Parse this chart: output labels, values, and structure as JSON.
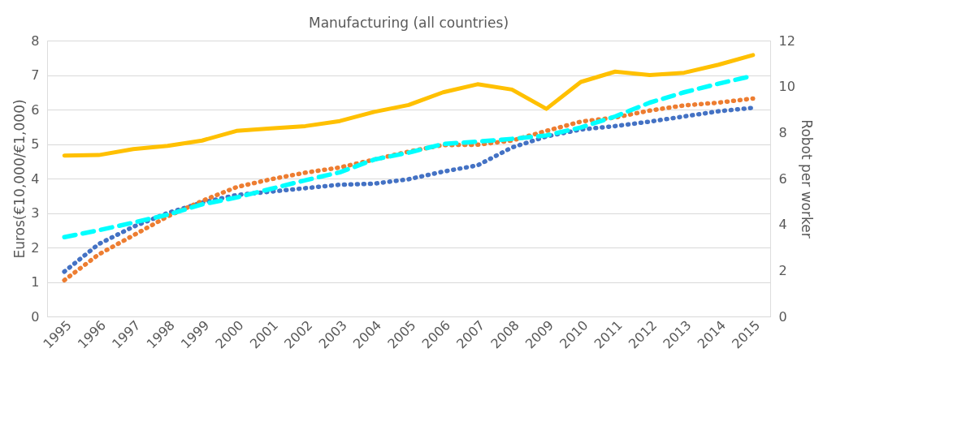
{
  "chart_data": {
    "type": "line",
    "title": "Manufacturing (all countries)",
    "ylabel": "Euros(€10,000/€1,000)",
    "y2label": "Robot per worker",
    "categories": [
      "1995",
      "1996",
      "1997",
      "1998",
      "1999",
      "2000",
      "2001",
      "2002",
      "2003",
      "2004",
      "2005",
      "2006",
      "2007",
      "2008",
      "2009",
      "2010",
      "2011",
      "2012",
      "2013",
      "2014",
      "2015"
    ],
    "ylim": [
      0,
      8
    ],
    "yticks": [
      0,
      1,
      2,
      3,
      4,
      5,
      6,
      7,
      8
    ],
    "y2lim": [
      0,
      12
    ],
    "y2ticks": [
      0,
      2,
      4,
      6,
      8,
      10,
      12
    ],
    "grid": "y",
    "marker": "none",
    "series": [
      {
        "color": "#ffc000",
        "axis": "y2",
        "line_style": "solid",
        "values": [
          7.0,
          7.02,
          7.28,
          7.42,
          7.65,
          8.07,
          8.18,
          8.28,
          8.5,
          8.9,
          9.2,
          9.75,
          10.1,
          9.87,
          9.03,
          10.2,
          10.65,
          10.5,
          10.6,
          10.95,
          11.37
        ]
      },
      {
        "color": "#4472c4",
        "line_style": "dotted",
        "values": [
          1.3,
          2.1,
          2.6,
          3.0,
          3.3,
          3.52,
          3.62,
          3.72,
          3.82,
          3.85,
          3.98,
          4.2,
          4.38,
          4.9,
          5.22,
          5.42,
          5.52,
          5.65,
          5.8,
          5.95,
          6.05
        ]
      },
      {
        "color": "#ed7d31",
        "line_style": "dotted",
        "values": [
          1.05,
          1.8,
          2.35,
          2.9,
          3.35,
          3.75,
          3.98,
          4.17,
          4.32,
          4.55,
          4.78,
          4.97,
          4.98,
          5.1,
          5.38,
          5.65,
          5.77,
          5.97,
          6.12,
          6.2,
          6.32
        ]
      },
      {
        "color": "#00ffff",
        "line_style": "dashed",
        "values": [
          2.3,
          2.5,
          2.72,
          2.95,
          3.25,
          3.45,
          3.7,
          3.95,
          4.18,
          4.55,
          4.75,
          5.0,
          5.07,
          5.15,
          5.25,
          5.48,
          5.8,
          6.2,
          6.5,
          6.75,
          6.98
        ]
      }
    ]
  }
}
